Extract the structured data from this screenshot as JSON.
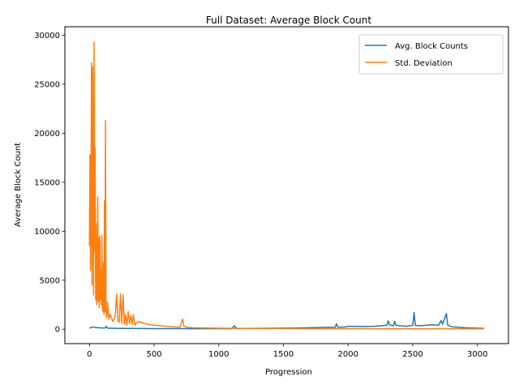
{
  "chart_data": {
    "type": "line",
    "title": "Full Dataset: Average Block Count",
    "xlabel": "Progression",
    "ylabel": "Average Block Count",
    "xlim": [
      -190,
      3240
    ],
    "ylim": [
      -1470,
      30870
    ],
    "xticks": [
      0,
      500,
      1000,
      1500,
      2000,
      2500,
      3000
    ],
    "yticks": [
      0,
      5000,
      10000,
      15000,
      20000,
      25000,
      30000
    ],
    "grid": false,
    "legend_position": "top-right",
    "series": [
      {
        "name": "Avg. Block Counts",
        "color": "#1f77b4",
        "x": [
          0,
          10,
          20,
          30,
          40,
          50,
          60,
          80,
          100,
          120,
          130,
          140,
          160,
          200,
          250,
          300,
          400,
          500,
          600,
          700,
          800,
          900,
          1000,
          1100,
          1120,
          1140,
          1200,
          1300,
          1400,
          1500,
          1600,
          1700,
          1800,
          1900,
          1910,
          1920,
          1940,
          1990,
          2000,
          2100,
          2200,
          2250,
          2300,
          2310,
          2320,
          2350,
          2360,
          2370,
          2400,
          2450,
          2500,
          2510,
          2520,
          2550,
          2600,
          2650,
          2700,
          2720,
          2730,
          2760,
          2770,
          2790,
          2800,
          2850,
          2900,
          2950,
          3000,
          3050
        ],
        "values": [
          120,
          150,
          180,
          220,
          200,
          170,
          160,
          140,
          130,
          120,
          300,
          110,
          100,
          90,
          80,
          80,
          70,
          60,
          60,
          55,
          50,
          50,
          55,
          60,
          350,
          70,
          80,
          90,
          100,
          110,
          120,
          150,
          180,
          200,
          550,
          220,
          200,
          250,
          300,
          280,
          300,
          350,
          400,
          850,
          450,
          350,
          800,
          400,
          350,
          300,
          400,
          1700,
          400,
          350,
          400,
          450,
          400,
          900,
          500,
          1600,
          450,
          300,
          250,
          200,
          150,
          120,
          100,
          90
        ]
      },
      {
        "name": "Std. Deviation",
        "color": "#ff7f0e",
        "x": [
          0,
          4,
          8,
          12,
          16,
          20,
          24,
          28,
          32,
          36,
          40,
          44,
          48,
          52,
          56,
          60,
          64,
          68,
          72,
          76,
          80,
          84,
          88,
          92,
          96,
          100,
          104,
          108,
          112,
          116,
          120,
          124,
          128,
          132,
          136,
          140,
          150,
          160,
          170,
          180,
          190,
          200,
          210,
          220,
          230,
          240,
          250,
          260,
          270,
          280,
          290,
          300,
          310,
          320,
          330,
          340,
          350,
          360,
          380,
          400,
          450,
          500,
          550,
          600,
          650,
          700,
          720,
          730,
          750,
          800,
          900,
          1000,
          1100,
          1200,
          1400,
          1600,
          1800,
          2000,
          2200,
          2400,
          2600,
          2800,
          3000,
          3050
        ],
        "values": [
          8500,
          17800,
          6000,
          14000,
          27200,
          4500,
          26800,
          12000,
          3500,
          29300,
          8000,
          18500,
          3000,
          10800,
          2500,
          4000,
          13500,
          2800,
          9300,
          2200,
          9500,
          3000,
          6000,
          2500,
          9600,
          2000,
          1800,
          6800,
          1500,
          13100,
          1800,
          21300,
          2000,
          1200,
          1500,
          2800,
          1000,
          1500,
          1200,
          800,
          1000,
          1400,
          3600,
          900,
          700,
          3600,
          600,
          3500,
          500,
          1500,
          400,
          1800,
          600,
          1400,
          500,
          1500,
          400,
          600,
          800,
          700,
          500,
          400,
          350,
          300,
          250,
          200,
          1050,
          300,
          200,
          150,
          120,
          100,
          90,
          80,
          70,
          60,
          60,
          50,
          50,
          50,
          45,
          40,
          40,
          40
        ]
      }
    ]
  }
}
